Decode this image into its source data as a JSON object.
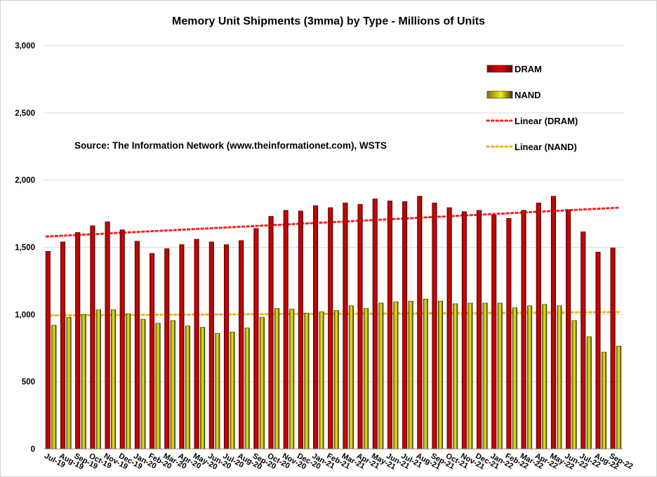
{
  "chart_data": {
    "type": "bar",
    "title": "Memory Unit Shipments (3mma) by Type - Millions of Units",
    "annotation": "Source: The Information Network (www.theinformationet.com), WSTS",
    "xlabel": "",
    "ylabel": "",
    "ylim": [
      0,
      3000
    ],
    "yticks": [
      0,
      500,
      1000,
      1500,
      2000,
      2500,
      3000
    ],
    "ytick_labels": [
      "0",
      "500",
      "1,000",
      "1,500",
      "2,000",
      "2,500",
      "3,000"
    ],
    "grid": true,
    "legend_position": "top-right",
    "categories": [
      "Jul-19",
      "Aug-19",
      "Sep-19",
      "Oct-19",
      "Nov-19",
      "Dec-19",
      "Jan-20",
      "Feb-20",
      "Mar-20",
      "Apr-20",
      "May-20",
      "Jun-20",
      "Jul-20",
      "Aug-20",
      "Sep-20",
      "Oct-20",
      "Nov-20",
      "Dec-20",
      "Jan-21",
      "Feb-21",
      "Mar-21",
      "Apr-21",
      "May-21",
      "Jun-21",
      "Jul-21",
      "Aug-21",
      "Sep-21",
      "Oct-21",
      "Nov-21",
      "Dec-21",
      "Jan-22",
      "Feb-22",
      "Mar-22",
      "Apr-22",
      "May-22",
      "Jun-22",
      "Jul-22",
      "Aug-22",
      "Sep-22"
    ],
    "series": [
      {
        "name": "DRAM",
        "color": "#e00000",
        "values": [
          1470,
          1540,
          1610,
          1660,
          1690,
          1630,
          1545,
          1455,
          1490,
          1520,
          1560,
          1540,
          1520,
          1550,
          1640,
          1730,
          1775,
          1770,
          1810,
          1795,
          1830,
          1820,
          1860,
          1845,
          1840,
          1880,
          1830,
          1795,
          1765,
          1775,
          1740,
          1715,
          1775,
          1830,
          1880,
          1780,
          1615,
          1465,
          1495
        ]
      },
      {
        "name": "NAND",
        "color": "#f2ea00",
        "values": [
          920,
          980,
          1000,
          1035,
          1035,
          1005,
          965,
          935,
          955,
          915,
          905,
          860,
          870,
          900,
          980,
          1045,
          1040,
          1010,
          1020,
          1030,
          1065,
          1045,
          1085,
          1095,
          1100,
          1115,
          1100,
          1080,
          1085,
          1085,
          1085,
          1050,
          1065,
          1075,
          1065,
          955,
          835,
          720,
          765
        ]
      }
    ],
    "trendlines": [
      {
        "name": "Linear (DRAM)",
        "color": "#ff2020",
        "start": 1580,
        "end": 1795
      },
      {
        "name": "Linear (NAND)",
        "color": "#f0b400",
        "start": 993,
        "end": 1018
      }
    ]
  }
}
